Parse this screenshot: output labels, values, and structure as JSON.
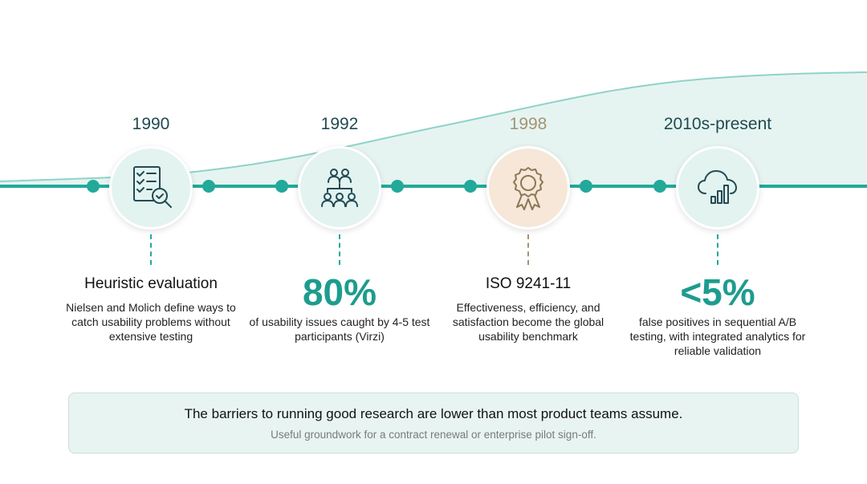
{
  "colors": {
    "accent": "#22a99a",
    "accent_text": "#1d9c8e",
    "year_text": "#1f4a52",
    "beige_accent": "#a39473",
    "node_fill": "#e2f3f0",
    "node_fill_beige": "#f6e7d8",
    "summary_bg": "#e8f4f2"
  },
  "milestones": [
    {
      "year": "1990",
      "icon": "checklist-magnifier-icon",
      "heading": "Heuristic evaluation",
      "description": "Nielsen and Molich define ways to catch usability problems without extensive testing"
    },
    {
      "year": "1992",
      "icon": "group-of-people-icon",
      "stat": "80%",
      "description": "of usability issues caught by 4-5 test participants (Virzi)"
    },
    {
      "year": "1998",
      "icon": "award-ribbon-icon",
      "heading": "ISO 9241-11",
      "description": "Effectiveness, efficiency, and satisfaction become the global usability benchmark"
    },
    {
      "year": "2010s-present",
      "icon": "cloud-analytics-icon",
      "stat": "<5%",
      "description": "false positives in sequential A/B testing, with integrated analytics for reliable validation"
    }
  ],
  "summary": {
    "title": "The barriers to running good research are lower than most product teams assume.",
    "subtitle": "Useful groundwork for a contract renewal or enterprise pilot sign-off."
  }
}
